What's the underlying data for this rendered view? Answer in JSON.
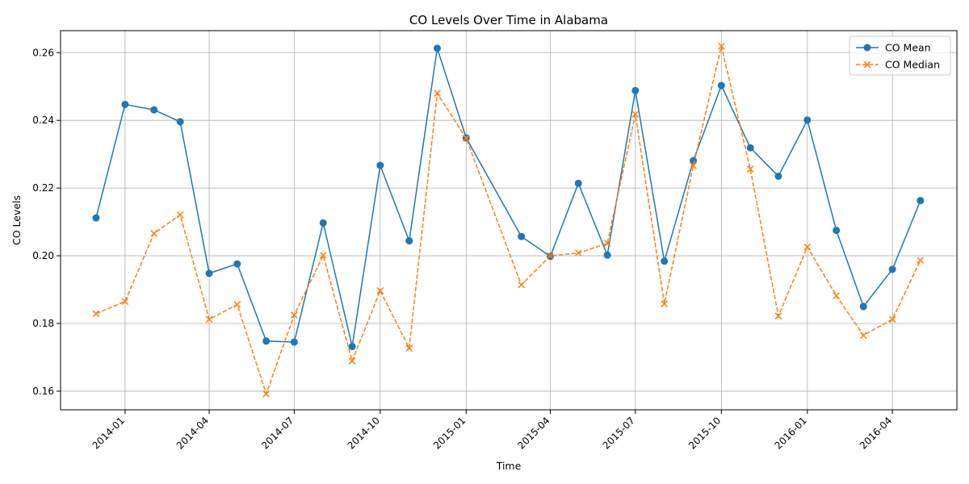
{
  "chart_data": {
    "type": "line",
    "title": "CO Levels Over Time in Alabama",
    "xlabel": "Time",
    "ylabel": "CO Levels",
    "x_tick_labels": [
      "2014-01",
      "2014-04",
      "2014-07",
      "2014-10",
      "2015-01",
      "2015-04",
      "2015-07",
      "2015-10",
      "2016-01",
      "2016-04"
    ],
    "y_ticks": [
      0.16,
      0.18,
      0.2,
      0.22,
      0.24,
      0.26
    ],
    "y_tick_labels": [
      "0.16",
      "0.18",
      "0.20",
      "0.22",
      "0.24",
      "0.26"
    ],
    "ylim": [
      0.1545,
      0.2665
    ],
    "xlim": [
      "2013-10-24",
      "2016-06-09"
    ],
    "grid": true,
    "legend_position": "top-right",
    "x": [
      "2013-12-01",
      "2014-01-01",
      "2014-02-01",
      "2014-03-01",
      "2014-04-01",
      "2014-05-01",
      "2014-06-01",
      "2014-07-01",
      "2014-08-01",
      "2014-09-01",
      "2014-10-01",
      "2014-11-01",
      "2014-12-01",
      "2015-01-01",
      "2015-03-01",
      "2015-04-01",
      "2015-05-01",
      "2015-06-01",
      "2015-07-01",
      "2015-08-01",
      "2015-09-01",
      "2015-10-01",
      "2015-11-01",
      "2015-12-01",
      "2016-01-01",
      "2016-02-01",
      "2016-03-01",
      "2016-04-01",
      "2016-05-01"
    ],
    "series": [
      {
        "name": "CO Mean",
        "color": "#1f77b4",
        "marker": "circle",
        "line_style": "solid",
        "values": [
          0.2112,
          0.2447,
          0.2431,
          0.2396,
          0.1948,
          0.1976,
          0.1748,
          0.1745,
          0.2097,
          0.1732,
          0.2267,
          0.2044,
          0.2613,
          0.2348,
          0.2057,
          0.1998,
          0.2214,
          0.2002,
          0.2488,
          0.1984,
          0.2281,
          0.2503,
          0.2319,
          0.2235,
          0.2401,
          0.2075,
          0.185,
          0.196,
          0.2163
        ]
      },
      {
        "name": "CO Median",
        "color": "#ff7f0e",
        "marker": "x",
        "line_style": "dashed",
        "values": [
          0.1829,
          0.1865,
          0.2066,
          0.2121,
          0.1812,
          0.1856,
          0.1592,
          0.1825,
          0.2001,
          0.1689,
          0.1897,
          0.1727,
          0.248,
          0.2347,
          0.1914,
          0.2,
          0.2008,
          0.2037,
          0.2418,
          0.1858,
          0.2266,
          0.2619,
          0.2256,
          0.1822,
          0.2026,
          0.1882,
          0.1765,
          0.1812,
          0.1987
        ]
      }
    ]
  }
}
